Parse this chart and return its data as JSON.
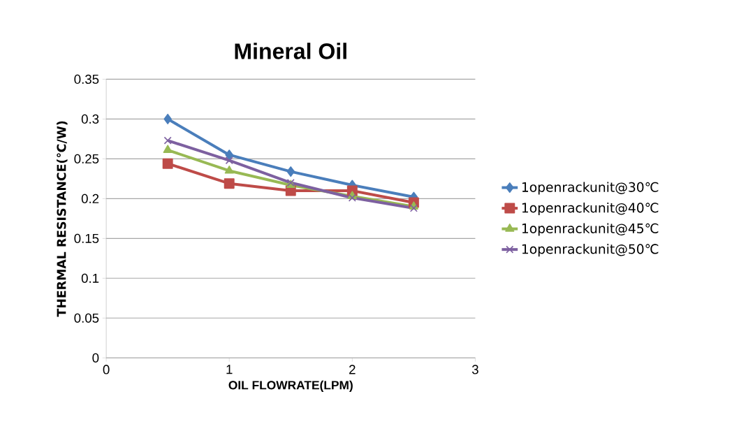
{
  "chart_data": {
    "type": "line",
    "title": "Mineral Oil",
    "xlabel": "OIL FLOWRATE(LPM)",
    "ylabel": "THERMAL RESISTANCE(℃/W)",
    "x": [
      0.5,
      1,
      1.5,
      2,
      2.5
    ],
    "xlim": [
      0,
      3
    ],
    "xticks": [
      0,
      1,
      2,
      3
    ],
    "ylim": [
      0,
      0.35
    ],
    "yticks": [
      0,
      0.05,
      0.1,
      0.15,
      0.2,
      0.25,
      0.3,
      0.35
    ],
    "grid": "y",
    "legend": "right",
    "line_style": "solid",
    "series": [
      {
        "name": "1openrackunit@30℃",
        "color": "#4a7ebb",
        "marker": "diamond",
        "values": [
          0.3,
          0.255,
          0.234,
          0.217,
          0.202
        ]
      },
      {
        "name": "1openrackunit@40℃",
        "color": "#be4b48",
        "marker": "square",
        "values": [
          0.244,
          0.219,
          0.21,
          0.21,
          0.195
        ]
      },
      {
        "name": "1openrackunit@45℃",
        "color": "#98b954",
        "marker": "triangle",
        "values": [
          0.261,
          0.235,
          0.217,
          0.203,
          0.19
        ]
      },
      {
        "name": "1openrackunit@50℃",
        "color": "#7d60a0",
        "marker": "cross",
        "values": [
          0.273,
          0.248,
          0.22,
          0.201,
          0.188
        ]
      }
    ]
  }
}
